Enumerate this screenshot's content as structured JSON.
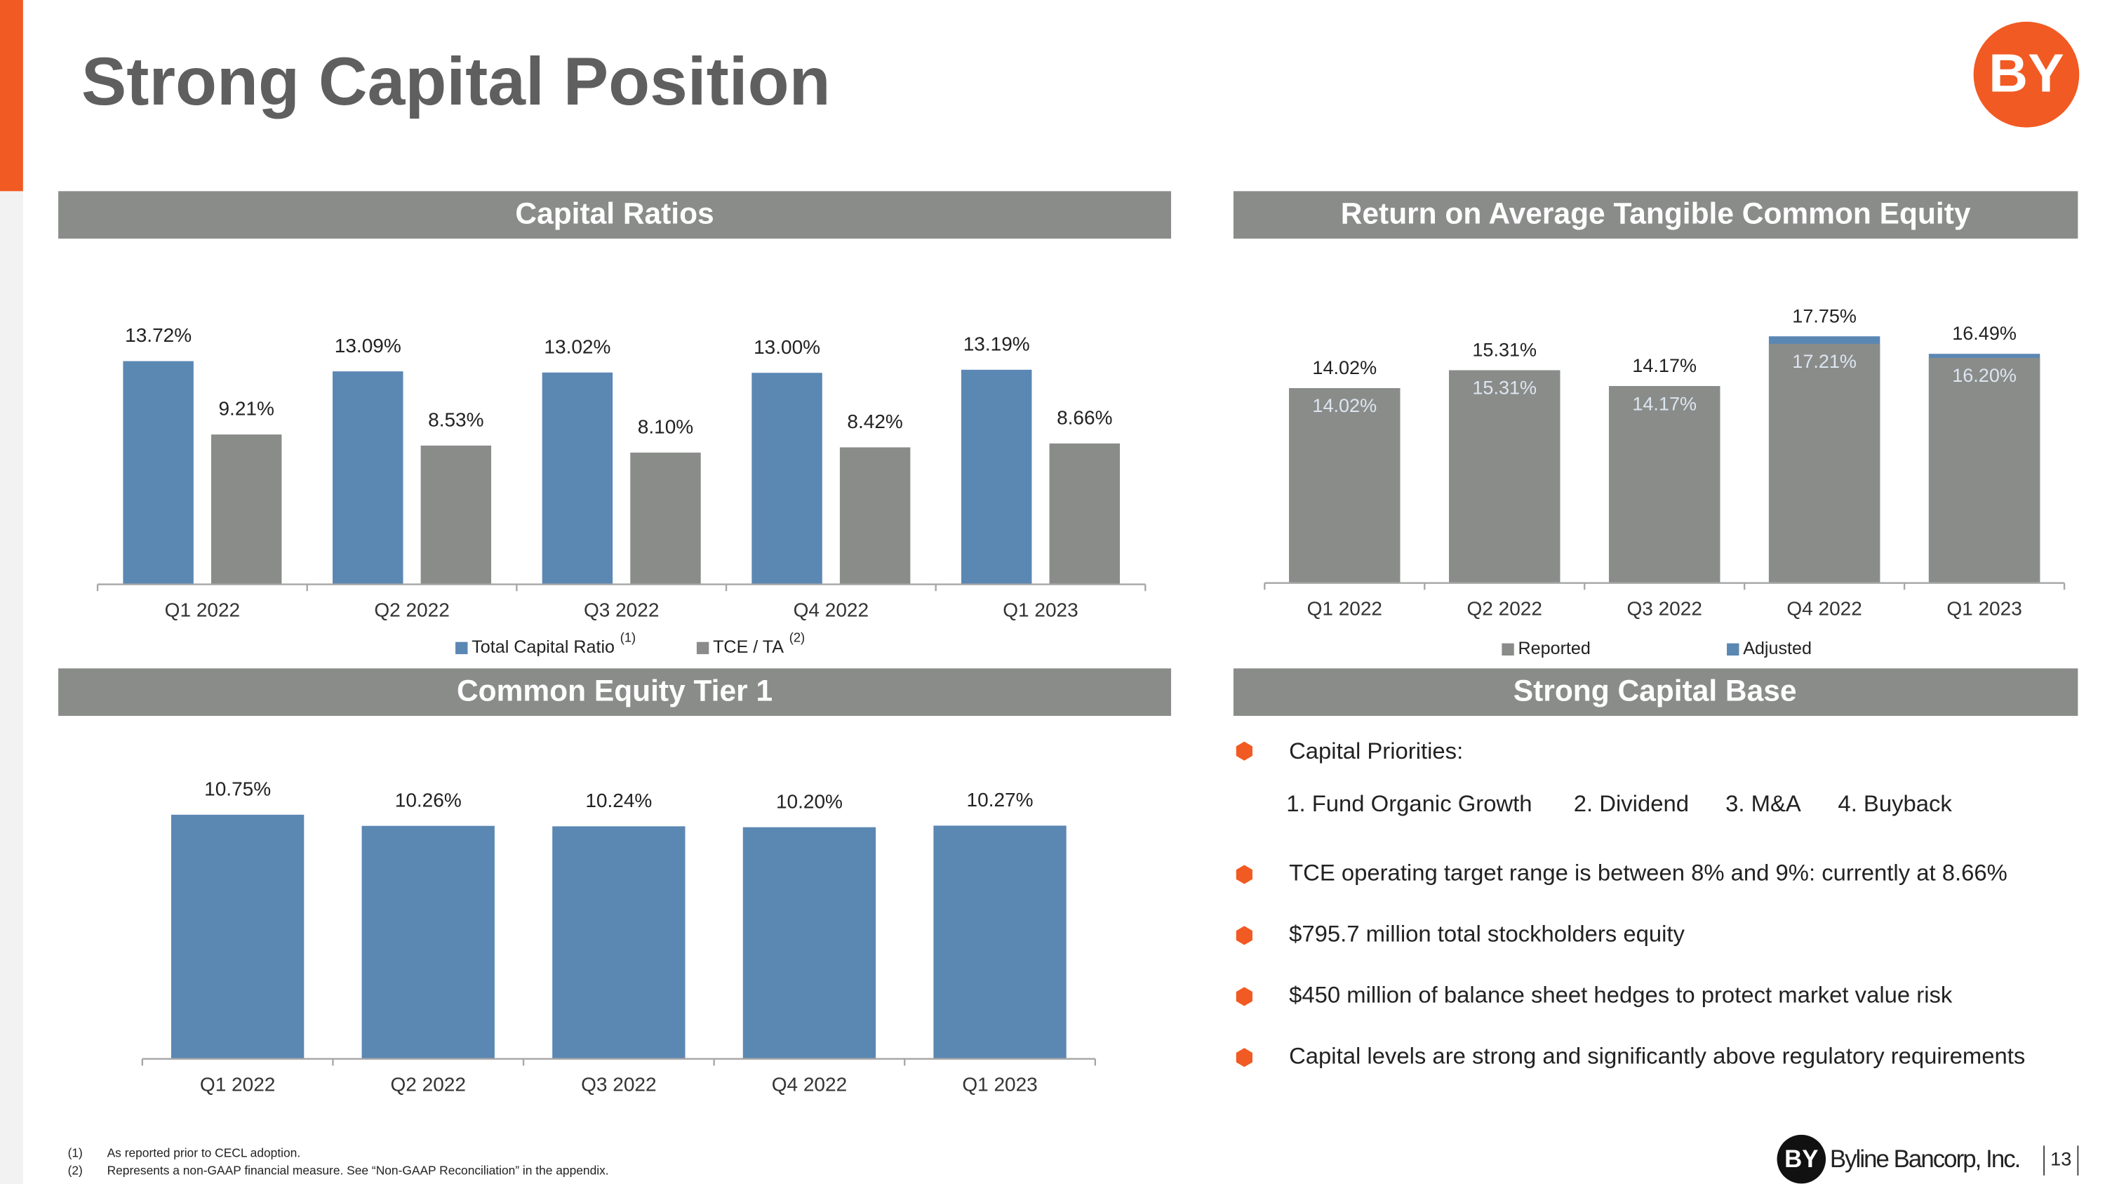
{
  "title": "Strong Capital Position",
  "logo": "BY",
  "chart_data": [
    {
      "type": "bar",
      "title": "Capital Ratios",
      "categories": [
        "Q1 2022",
        "Q2 2022",
        "Q3 2022",
        "Q4 2022",
        "Q1 2023"
      ],
      "series": [
        {
          "name": "Total Capital Ratio",
          "note": "(1)",
          "color": "#5b87b3",
          "values": [
            13.72,
            13.09,
            13.02,
            13.0,
            13.19
          ],
          "value_labels": [
            "13.72%",
            "13.09%",
            "13.02%",
            "13.00%",
            "13.19%"
          ]
        },
        {
          "name": "TCE / TA",
          "note": "(2)",
          "color": "#8a8c8a",
          "values": [
            9.21,
            8.53,
            8.1,
            8.42,
            8.66
          ],
          "value_labels": [
            "9.21%",
            "8.53%",
            "8.10%",
            "8.42%",
            "8.66%"
          ]
        }
      ],
      "ylim": [
        0,
        15
      ],
      "legend": "bottom"
    },
    {
      "type": "bar",
      "overlay": true,
      "title": "Return on Average Tangible Common Equity",
      "categories": [
        "Q1 2022",
        "Q2 2022",
        "Q3 2022",
        "Q4 2022",
        "Q1 2023"
      ],
      "series": [
        {
          "name": "Reported",
          "color": "#8a8c8a",
          "values": [
            14.02,
            15.31,
            14.17,
            17.21,
            16.2
          ],
          "value_labels": [
            "14.02%",
            "15.31%",
            "14.17%",
            "17.21%",
            "16.20%"
          ]
        },
        {
          "name": "Adjusted",
          "color": "#5b87b3",
          "values": [
            14.02,
            15.31,
            14.17,
            17.75,
            16.49
          ],
          "value_labels": [
            "14.02%",
            "15.31%",
            "14.17%",
            "17.75%",
            "16.49%"
          ]
        }
      ],
      "ylim": [
        0,
        20
      ],
      "legend": "bottom"
    },
    {
      "type": "bar",
      "title": "Common Equity Tier 1",
      "categories": [
        "Q1 2022",
        "Q2 2022",
        "Q3 2022",
        "Q4 2022",
        "Q1 2023"
      ],
      "values": [
        10.75,
        10.26,
        10.24,
        10.2,
        10.27
      ],
      "value_labels": [
        "10.75%",
        "10.26%",
        "10.24%",
        "10.20%",
        "10.27%"
      ],
      "color": "#5b87b3",
      "ylim": [
        0,
        12
      ]
    }
  ],
  "capital_base": {
    "title": "Strong Capital Base",
    "heading": "Capital Priorities:",
    "priorities": [
      "1. Fund Organic Growth",
      "2. Dividend",
      "3. M&A",
      "4. Buyback"
    ],
    "bullets": [
      "TCE operating target range is between 8% and 9%: currently at 8.66%",
      "$795.7 million total stockholders equity",
      "$450 million of balance sheet hedges to protect market value risk",
      "Capital levels are strong and significantly above regulatory requirements"
    ]
  },
  "footnotes": [
    {
      "marker": "(1)",
      "text": "As reported prior to CECL adoption."
    },
    {
      "marker": "(2)",
      "text": "Represents a non-GAAP financial measure.  See “Non-GAAP Reconciliation” in the appendix."
    }
  ],
  "footer": {
    "logo": "BY",
    "company": "Byline Bancorp, Inc.",
    "page_number": "13"
  }
}
